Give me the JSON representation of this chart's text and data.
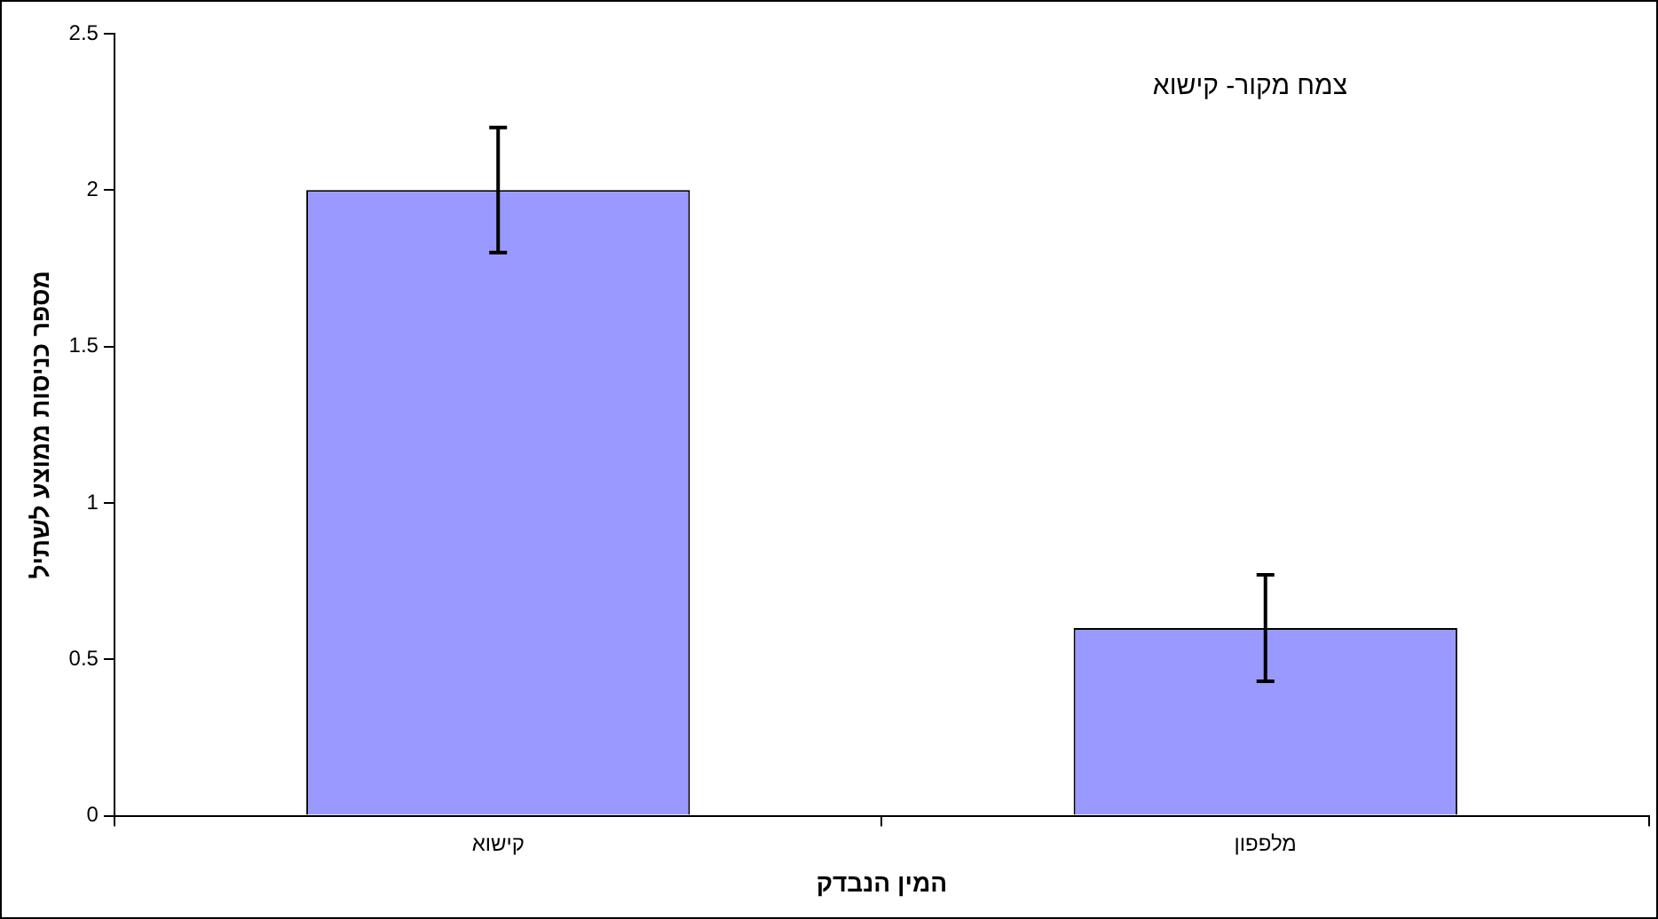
{
  "chart_data": {
    "type": "bar",
    "title": "צמח מקור- קישוא",
    "xlabel": "המין הנבדק",
    "ylabel": "מספר כניסות ממוצע לשתיל",
    "categories": [
      "קישוא",
      "מלפפון"
    ],
    "values": [
      2,
      0.6
    ],
    "errors": [
      0.2,
      0.17
    ],
    "color": "#9999ff",
    "ylim": [
      0,
      2.5
    ],
    "yticks": [
      0,
      0.5,
      1,
      1.5,
      2,
      2.5
    ],
    "grid": false,
    "legend": false
  }
}
